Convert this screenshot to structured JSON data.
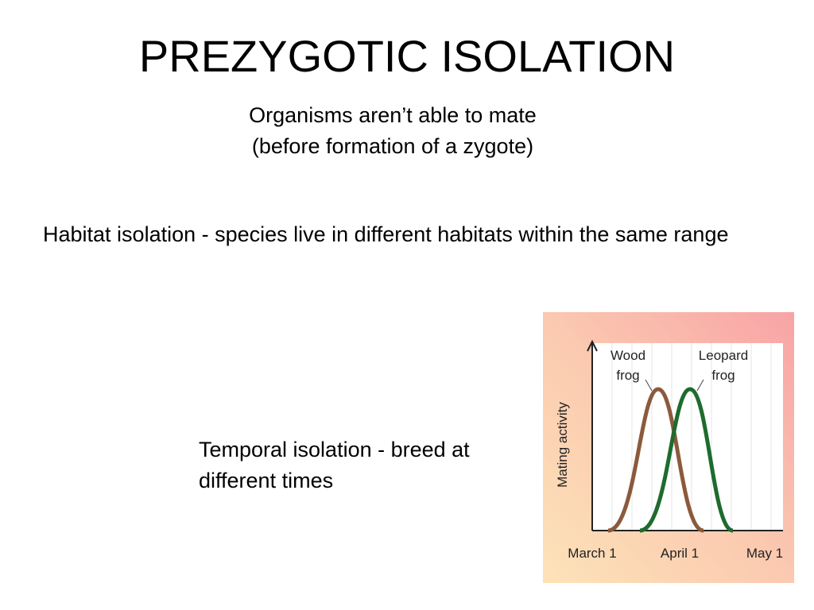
{
  "slide": {
    "title": "PREZYGOTIC ISOLATION",
    "subtitle": [
      "Organisms aren’t able to mate",
      "(before formation of a zygote)"
    ],
    "points": [
      "Habitat isolation - species live in different habitats within the same range",
      "Temporal isolation - breed at different times"
    ],
    "figure": {
      "y_label": "Mating activity",
      "x_labels": [
        "March 1",
        "April 1",
        "May 1"
      ],
      "wood_label": [
        "Wood",
        "frog"
      ],
      "leopard_label": [
        "Leopard",
        "frog"
      ]
    }
  }
}
